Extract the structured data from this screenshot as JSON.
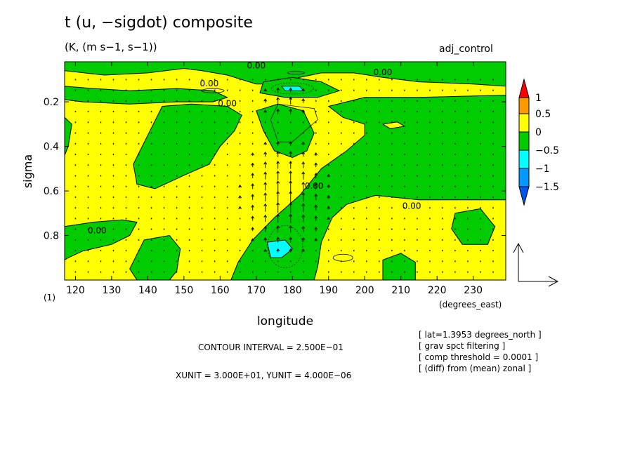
{
  "header": {
    "title": "t (u, −sigdot) composite",
    "subtitle": "(K, (m s−1, s−1))",
    "tag": "adj_control"
  },
  "notes": {
    "contour_interval": "CONTOUR INTERVAL = 2.500E−01",
    "units": "XUNIT = 3.000E+01, YUNIT = 4.000E−06",
    "info": [
      "[ lat=1.3953 degrees_north ]",
      "[ grav spct filtering ]",
      "[ comp threshold = 0.0001 ]",
      "[ (diff) from (mean) zonal ]"
    ]
  },
  "chart_data": {
    "type": "heatmap",
    "title": "t (u, −sigdot) composite",
    "subtitle": "(K, (m s−1, s−1))",
    "xlabel": "longitude",
    "xunits": "(degrees_east)",
    "ylabel": "sigma",
    "ylabel_suffix": "(1)",
    "xlim": [
      117,
      239
    ],
    "ylim": [
      1.0,
      0.02
    ],
    "xticks": [
      120,
      130,
      140,
      150,
      160,
      170,
      180,
      190,
      200,
      210,
      220,
      230
    ],
    "yticks": [
      0.2,
      0.4,
      0.6,
      0.8
    ],
    "contour_interval": 0.25,
    "contour_labels": [
      {
        "text": "0.00",
        "x": 157,
        "y": 0.13
      },
      {
        "text": "0.00",
        "x": 162,
        "y": 0.22
      },
      {
        "text": "0.00",
        "x": 170,
        "y": 0.05
      },
      {
        "text": "0.00",
        "x": 205,
        "y": 0.08
      },
      {
        "text": "0.00",
        "x": 186,
        "y": 0.59
      },
      {
        "text": "0.00",
        "x": 213,
        "y": 0.68
      },
      {
        "text": "0.00",
        "x": 126,
        "y": 0.79
      }
    ],
    "colorbar": {
      "labels": [
        "1",
        "0.5",
        "0",
        "−0.5",
        "−1",
        "−1.5"
      ],
      "colors": [
        "#ff0000",
        "#ff9900",
        "#ffff00",
        "#00cc00",
        "#00ffff",
        "#0099ff",
        "#0055ee"
      ]
    },
    "vector_ref": {
      "xunit": 30,
      "yunit": 4e-06
    },
    "colors": {
      "yellow": "#ffff00",
      "green": "#00cc00",
      "cyan": "#00ffff",
      "axis": "#000000"
    }
  }
}
